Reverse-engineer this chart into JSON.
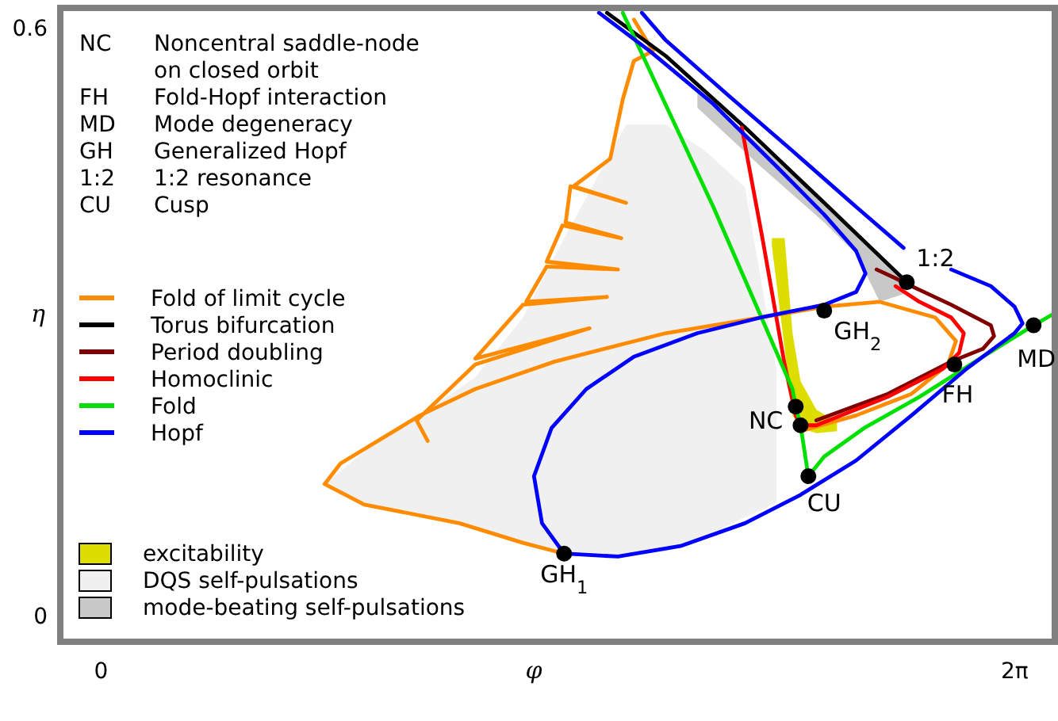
{
  "chart_data": {
    "type": "line",
    "xlabel": "φ",
    "ylabel": "η",
    "xlim": [
      -0.28,
      6.56
    ],
    "ylim": [
      -0.027,
      0.62
    ],
    "xticks": [
      {
        "value": 0,
        "label": "0"
      },
      {
        "value": 6.2832,
        "label": "2π"
      }
    ],
    "yticks": [
      0,
      0.6
    ],
    "grid": false,
    "legend": "left",
    "series": [
      {
        "type": "area",
        "name": "excitability",
        "color": "#dddd00",
        "x": [
          4.614,
          4.702,
          4.756,
          4.811,
          4.92,
          5.062,
          5.062,
          4.92,
          4.811,
          4.756,
          4.702,
          4.614
        ],
        "values": [
          0.385,
          0.385,
          0.288,
          0.239,
          0.21,
          0.197,
          0.188,
          0.186,
          0.191,
          0.204,
          0.272,
          0.377
        ]
      },
      {
        "type": "area",
        "name": "DQS self-pulsations",
        "color": "#f0f0f0",
        "x": [
          1.538,
          1.811,
          2.193,
          2.574,
          2.902,
          3.185,
          3.611,
          3.884,
          4.156,
          4.429,
          4.647,
          4.647,
          4.429,
          4.156,
          3.884,
          3.611,
          3.185,
          2.902,
          2.574,
          2.193,
          1.811
        ],
        "values": [
          0.134,
          0.167,
          0.204,
          0.243,
          0.304,
          0.385,
          0.501,
          0.501,
          0.474,
          0.437,
          0.25,
          0.115,
          0.1,
          0.081,
          0.065,
          0.061,
          0.063,
          0.074,
          0.091,
          0.102,
          0.113
        ]
      },
      {
        "type": "area",
        "name": "mode-beating self-pulsations",
        "color": "#c8c8c8",
        "x": [
          4.102,
          4.538,
          4.974,
          5.193,
          5.356,
          5.52,
          5.52,
          5.356,
          5.193,
          4.974,
          4.538,
          4.102
        ],
        "values": [
          0.537,
          0.479,
          0.421,
          0.388,
          0.366,
          0.343,
          0.328,
          0.32,
          0.369,
          0.401,
          0.458,
          0.518
        ]
      },
      {
        "name": "Fold of limit cycle",
        "color": "#ff8c00",
        "x": [
          3.185,
          2.902,
          2.465,
          1.811,
          1.538,
          1.647,
          2.193,
          2.574,
          3.12,
          3.884,
          4.538,
          4.974,
          5.356,
          5.738,
          5.88,
          5.825,
          5.574,
          5.193,
          4.811,
          null,
          2.247,
          2.171,
          2.574,
          3.36,
          2.574,
          2.902,
          3.48,
          2.924,
          3.065,
          3.556,
          3.065,
          3.174,
          3.578,
          3.196,
          3.229,
          3.611,
          3.251,
          3.502,
          3.589,
          3.665,
          3.796,
          3.665
        ],
        "values": [
          0.063,
          0.074,
          0.094,
          0.113,
          0.134,
          0.155,
          0.204,
          0.231,
          0.259,
          0.288,
          0.304,
          0.315,
          0.32,
          0.304,
          0.28,
          0.256,
          0.226,
          0.204,
          0.188,
          null,
          0.178,
          0.199,
          0.256,
          0.293,
          0.262,
          0.317,
          0.325,
          0.32,
          0.356,
          0.353,
          0.361,
          0.398,
          0.385,
          0.401,
          0.438,
          0.421,
          0.438,
          0.466,
          0.527,
          0.566,
          0.576,
          0.608
        ]
      },
      {
        "name": "Torus bifurcation",
        "color": "#000000",
        "x": [
          3.48,
          3.884,
          4.429,
          4.974,
          5.542
        ],
        "values": [
          0.615,
          0.571,
          0.498,
          0.421,
          0.34
        ]
      },
      {
        "name": "Period doubling",
        "color": "#800000",
        "x": [
          5.334,
          5.465,
          5.574,
          5.847,
          6.12,
          6.142,
          6.065,
          5.847,
          5.411,
          4.92
        ],
        "values": [
          0.353,
          0.344,
          0.336,
          0.317,
          0.296,
          0.285,
          0.272,
          0.259,
          0.226,
          0.199
        ]
      },
      {
        "name": "Homoclinic",
        "color": "#ff0000",
        "x": [
          4.407,
          4.549,
          4.702,
          4.778,
          4.811,
          4.92,
          5.411,
          5.793,
          5.902,
          5.934,
          5.847,
          5.629,
          5.465
        ],
        "values": [
          0.498,
          0.385,
          0.256,
          0.204,
          0.194,
          0.194,
          0.223,
          0.252,
          0.268,
          0.288,
          0.304,
          0.32,
          0.336
        ]
      },
      {
        "name": "Fold",
        "color": "#00e000",
        "x": [
          3.589,
          4.211,
          4.756,
          4.778,
          4.811,
          4.865,
          4.974,
          5.247,
          5.629,
          6.065,
          6.414,
          6.543
        ],
        "values": [
          0.615,
          0.417,
          0.231,
          0.213,
          0.194,
          0.142,
          0.162,
          0.191,
          0.223,
          0.264,
          0.296,
          0.307
        ]
      },
      {
        "name": "Hopf",
        "color": "#0000ff",
        "x": [
          3.425,
          3.774,
          4.211,
          4.647,
          4.974,
          5.193,
          5.258,
          5.193,
          4.974,
          4.538,
          4.102,
          3.665,
          3.338,
          3.098,
          2.978,
          3.033,
          3.185,
          3.556,
          3.993,
          4.429,
          4.811,
          5.193,
          5.574,
          5.956,
          6.283,
          6.338,
          6.283,
          6.12,
          5.847,
          null,
          5.52,
          5.193,
          4.756,
          4.32,
          3.884,
          3.72
        ],
        "values": [
          0.615,
          0.576,
          0.522,
          0.458,
          0.409,
          0.372,
          0.349,
          0.33,
          0.317,
          0.304,
          0.288,
          0.264,
          0.231,
          0.191,
          0.142,
          0.094,
          0.063,
          0.06,
          0.071,
          0.094,
          0.123,
          0.158,
          0.204,
          0.252,
          0.288,
          0.298,
          0.315,
          0.336,
          0.353,
          null,
          0.375,
          0.417,
          0.474,
          0.53,
          0.587,
          0.615
        ]
      },
      {
        "type": "scatter",
        "color": "#000000",
        "marker": "circle",
        "x": [
          3.185,
          4.974,
          4.778,
          4.811,
          4.865,
          5.869,
          6.414,
          5.542
        ],
        "values": [
          0.063,
          0.311,
          0.213,
          0.194,
          0.142,
          0.256,
          0.296,
          0.34
        ]
      }
    ],
    "annotations": [
      "NC Noncentral saddle-node on closed orbit",
      "FH Fold-Hopf interaction",
      "MD Mode degeneracy",
      "GH Generalized Hopf",
      "1:2 1:2 resonance",
      "CU Cusp",
      {
        "text": "GH$_{1}$",
        "x": 3.185,
        "y": 0.063
      },
      {
        "text": "GH$_{2}$",
        "x": 4.974,
        "y": 0.311
      },
      {
        "text": "NC",
        "x": 4.778,
        "y": 0.213
      },
      {
        "text": "CU",
        "x": 4.865,
        "y": 0.142
      },
      {
        "text": "FH",
        "x": 5.869,
        "y": 0.256
      },
      {
        "text": "MD",
        "x": 6.414,
        "y": 0.296
      },
      {
        "text": "1:2",
        "x": 5.542,
        "y": 0.34
      }
    ]
  }
}
